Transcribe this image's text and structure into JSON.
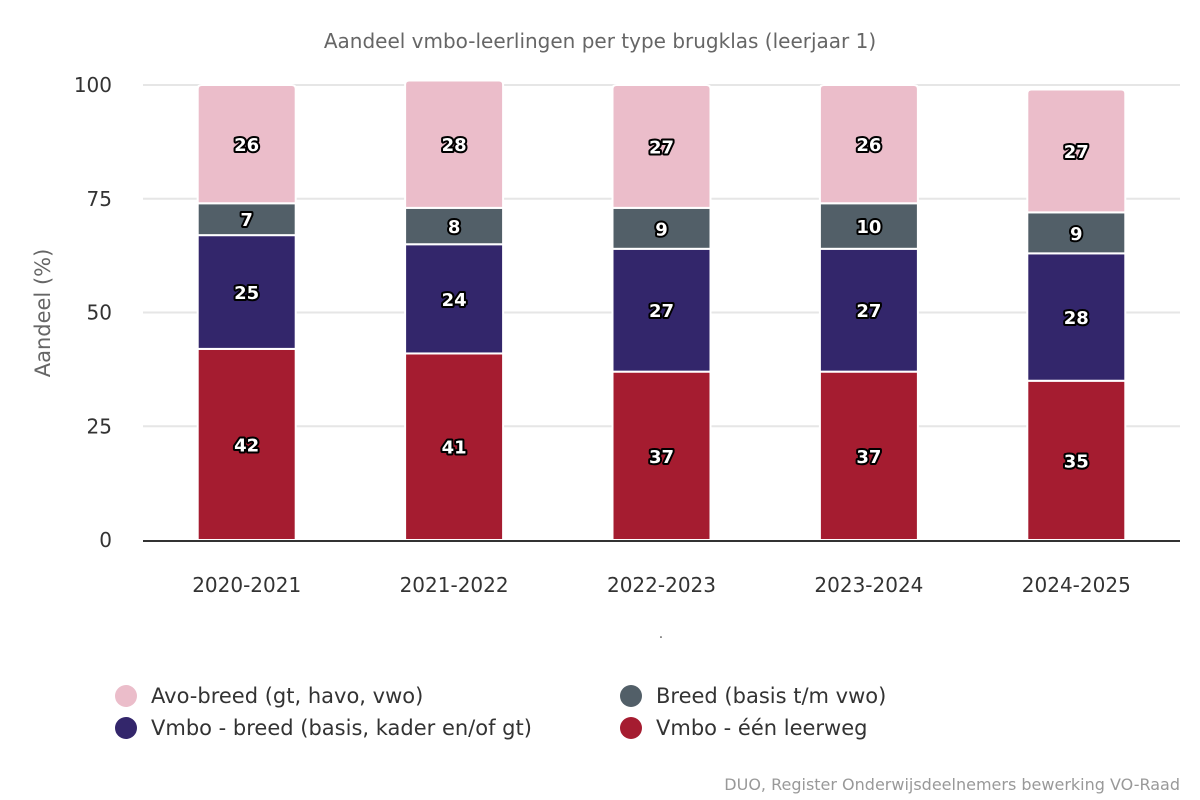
{
  "chart_data": {
    "type": "bar",
    "stacked": true,
    "title": "Aandeel vmbo-leerlingen per type brugklas (leerjaar 1)",
    "xlabel": ".",
    "ylabel": "Aandeel (%)",
    "ylim": [
      0,
      100
    ],
    "yticks": [
      0,
      25,
      50,
      75,
      100
    ],
    "grid": true,
    "legend_position": "bottom",
    "categories": [
      "2020-2021",
      "2021-2022",
      "2022-2023",
      "2023-2024",
      "2024-2025"
    ],
    "series": [
      {
        "name": "Vmbo - één leerweg",
        "color": "#a51c30",
        "values": [
          42,
          41,
          37,
          37,
          35
        ]
      },
      {
        "name": "Vmbo - breed (basis, kader en/of gt)",
        "color": "#33266b",
        "values": [
          25,
          24,
          27,
          27,
          28
        ]
      },
      {
        "name": "Breed (basis t/m vwo)",
        "color": "#525f68",
        "values": [
          7,
          8,
          9,
          10,
          9
        ]
      },
      {
        "name": "Avo-breed (gt, havo, vwo)",
        "color": "#ebbdca",
        "values": [
          26,
          28,
          27,
          26,
          27
        ]
      }
    ]
  },
  "legend": {
    "items": [
      {
        "label": "Avo-breed (gt, havo, vwo)",
        "color": "#ebbdca"
      },
      {
        "label": "Breed (basis t/m vwo)",
        "color": "#525f68"
      },
      {
        "label": "Vmbo - breed (basis, kader en/of gt)",
        "color": "#33266b"
      },
      {
        "label": "Vmbo - één leerweg",
        "color": "#a51c30"
      }
    ]
  },
  "credits": "DUO, Register Onderwijsdeelnemers bewerking VO-Raad"
}
